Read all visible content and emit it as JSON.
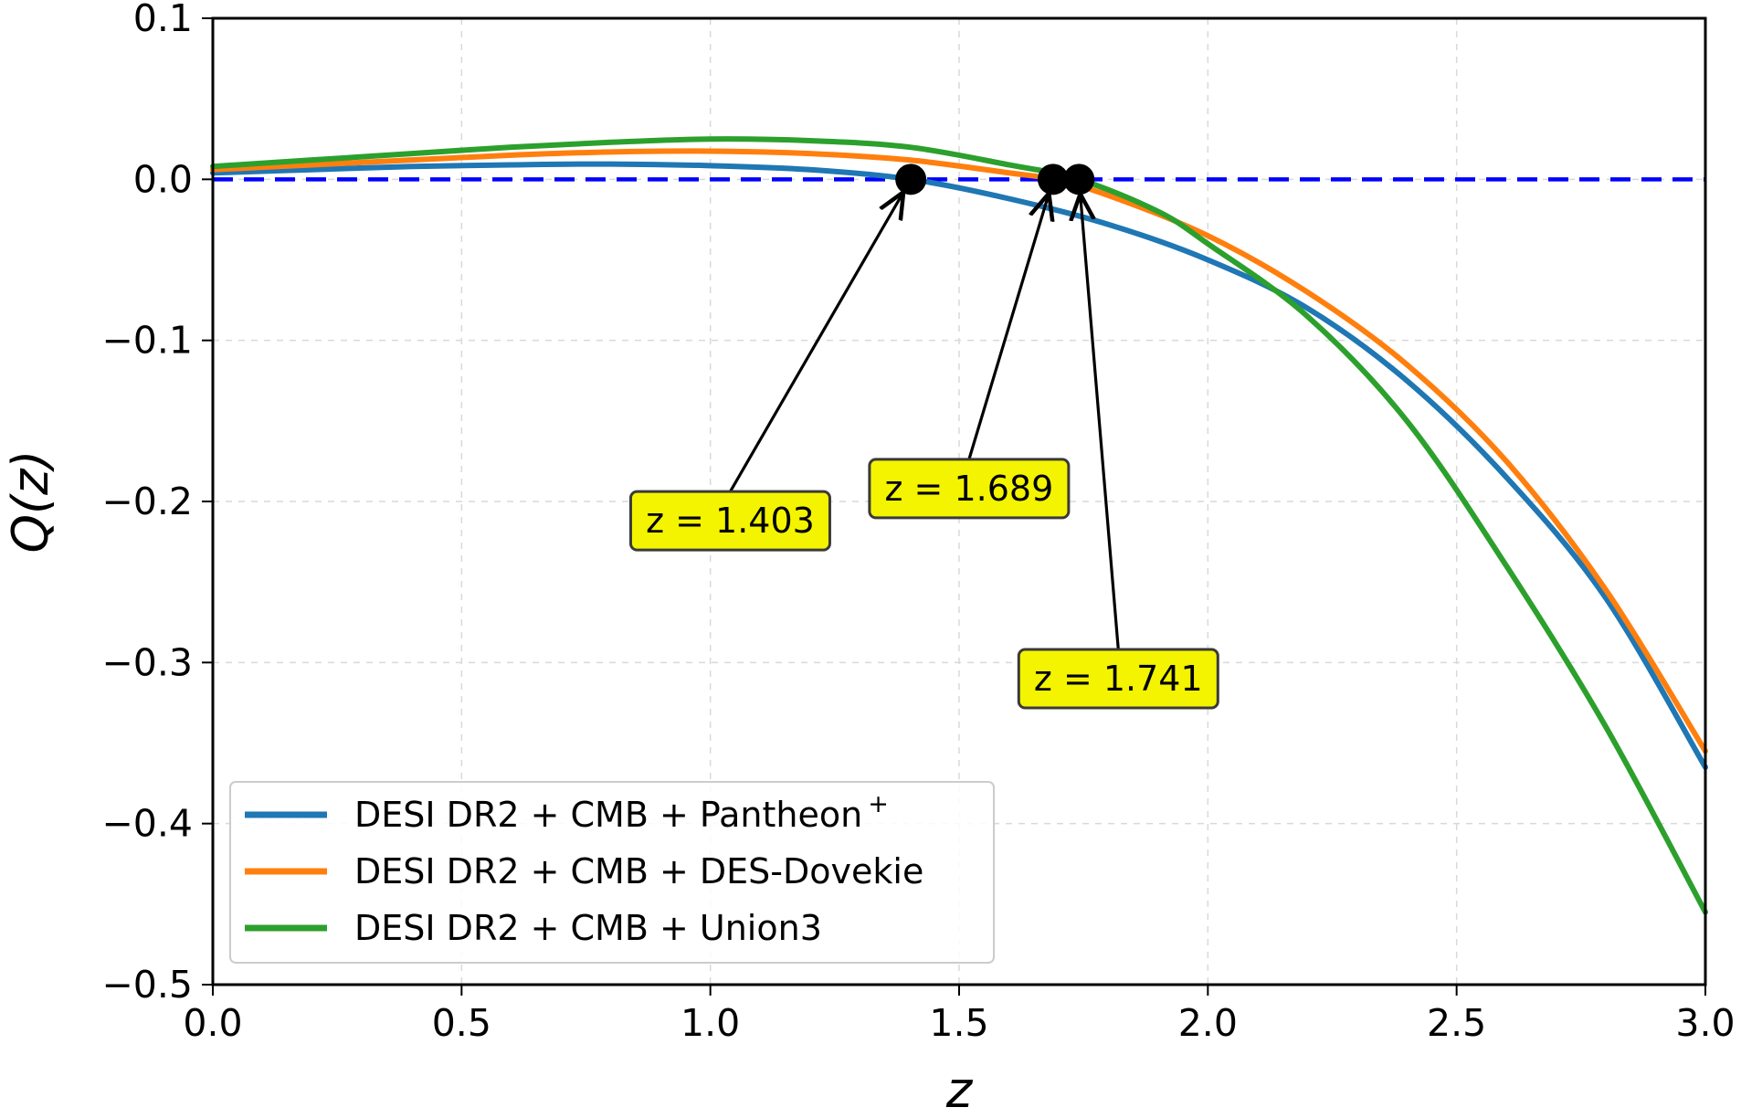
{
  "chart_data": {
    "type": "line",
    "xlabel": "z",
    "ylabel": "Q(z)",
    "xlim": [
      0.0,
      3.0
    ],
    "ylim": [
      -0.5,
      0.1
    ],
    "xticks": [
      "0.0",
      "0.5",
      "1.0",
      "1.5",
      "2.0",
      "2.5",
      "3.0"
    ],
    "yticks": [
      "0.1",
      "0.0",
      "−0.1",
      "−0.2",
      "−0.3",
      "−0.4",
      "−0.5"
    ],
    "xtick_values": [
      0.0,
      0.5,
      1.0,
      1.5,
      2.0,
      2.5,
      3.0
    ],
    "ytick_values": [
      0.1,
      0.0,
      -0.1,
      -0.2,
      -0.3,
      -0.4,
      -0.5
    ],
    "grid": true,
    "legend_position": "lower-left",
    "reference_line": {
      "y": 0.0,
      "style": "dashed",
      "color": "#0000ff"
    },
    "series": [
      {
        "name": "DESI DR2 + CMB + Pantheon",
        "name_sup": "+",
        "color": "#1f77b4",
        "x": [
          0.0,
          0.2,
          0.4,
          0.6,
          0.8,
          1.0,
          1.2,
          1.403,
          1.6,
          1.8,
          2.0,
          2.2,
          2.4,
          2.6,
          2.8,
          3.0
        ],
        "y": [
          0.004,
          0.006,
          0.008,
          0.009,
          0.0095,
          0.0085,
          0.006,
          0.0,
          -0.012,
          -0.028,
          -0.05,
          -0.08,
          -0.125,
          -0.185,
          -0.26,
          -0.365
        ]
      },
      {
        "name": "DESI DR2 + CMB + DES-Dovekie",
        "name_sup": "",
        "color": "#ff7f0e",
        "x": [
          0.0,
          0.2,
          0.4,
          0.6,
          0.8,
          1.0,
          1.2,
          1.4,
          1.6,
          1.689,
          1.8,
          2.0,
          2.2,
          2.4,
          2.6,
          2.8,
          3.0
        ],
        "y": [
          0.006,
          0.009,
          0.012,
          0.015,
          0.017,
          0.0175,
          0.016,
          0.012,
          0.004,
          0.0,
          -0.01,
          -0.035,
          -0.07,
          -0.115,
          -0.175,
          -0.255,
          -0.355
        ]
      },
      {
        "name": "DESI DR2 + CMB + Union3",
        "name_sup": "",
        "color": "#2ca02c",
        "x": [
          0.0,
          0.2,
          0.4,
          0.6,
          0.8,
          1.0,
          1.2,
          1.4,
          1.6,
          1.741,
          1.9,
          2.0,
          2.2,
          2.4,
          2.6,
          2.8,
          3.0
        ],
        "y": [
          0.008,
          0.012,
          0.016,
          0.02,
          0.023,
          0.025,
          0.024,
          0.02,
          0.009,
          0.0,
          -0.02,
          -0.04,
          -0.085,
          -0.15,
          -0.24,
          -0.34,
          -0.455
        ]
      }
    ],
    "annotations": [
      {
        "point_x": 1.403,
        "point_y": 0.0,
        "label": "z = 1.403",
        "label_x": 1.04,
        "label_y": -0.212
      },
      {
        "point_x": 1.689,
        "point_y": 0.0,
        "label": "z = 1.689",
        "label_x": 1.52,
        "label_y": -0.192
      },
      {
        "point_x": 1.741,
        "point_y": 0.0,
        "label": "z = 1.741",
        "label_x": 1.82,
        "label_y": -0.31
      }
    ]
  }
}
